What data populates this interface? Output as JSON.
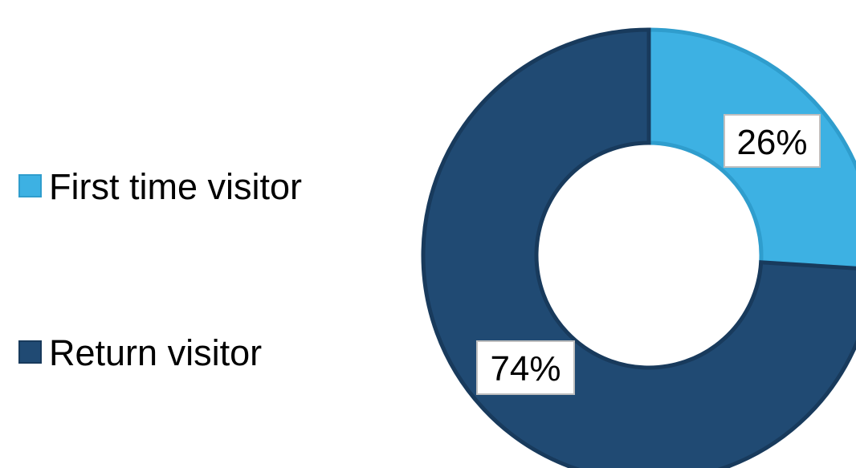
{
  "chart_data": {
    "type": "pie",
    "variant": "donut",
    "categories": [
      "First time visitor",
      "Return visitor"
    ],
    "values": [
      26,
      74
    ],
    "unit": "%",
    "data_labels": [
      "26%",
      "74%"
    ],
    "colors": [
      "#3db1e3",
      "#204a73"
    ],
    "legend_position": "left",
    "start_angle_deg": 0,
    "direction": "clockwise"
  }
}
